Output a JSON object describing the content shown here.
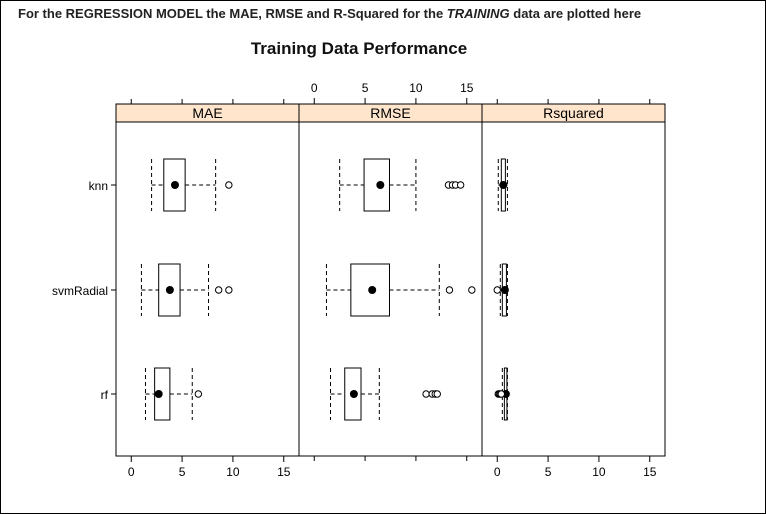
{
  "caption": {
    "part1": "For the REGRESSION MODEL the MAE, RMSE and R-Squared for the ",
    "emphasis": "TRAINING",
    "part2": " data are plotted here"
  },
  "colors": {
    "strip_background": "#ffe5cc",
    "axis": "#000000",
    "box_fill": "#ffffff"
  },
  "chart_data": {
    "type": "box",
    "title": "Training Data Performance",
    "xlim": [
      -1.5,
      16.5
    ],
    "x_ticks": [
      0,
      5,
      10,
      15
    ],
    "grid": false,
    "legend": "none",
    "categories": [
      "knn",
      "svmRadial",
      "rf"
    ],
    "panels": [
      {
        "name": "MAE",
        "boxes": [
          {
            "model": "knn",
            "whisker_low": 2.0,
            "q1": 3.2,
            "median": 4.3,
            "q3": 5.3,
            "whisker_high": 8.3,
            "outliers": [
              9.6
            ]
          },
          {
            "model": "svmRadial",
            "whisker_low": 1.0,
            "q1": 2.7,
            "median": 3.8,
            "q3": 4.8,
            "whisker_high": 7.6,
            "outliers": [
              8.6,
              9.6
            ]
          },
          {
            "model": "rf",
            "whisker_low": 1.4,
            "q1": 2.3,
            "median": 2.7,
            "q3": 3.8,
            "whisker_high": 6.0,
            "outliers": [
              6.6
            ]
          }
        ]
      },
      {
        "name": "RMSE",
        "boxes": [
          {
            "model": "knn",
            "whisker_low": 2.5,
            "q1": 4.9,
            "median": 6.5,
            "q3": 7.4,
            "whisker_high": 10.0,
            "outliers": [
              13.2,
              13.6,
              13.9,
              14.4
            ]
          },
          {
            "model": "svmRadial",
            "whisker_low": 1.2,
            "q1": 3.6,
            "median": 5.7,
            "q3": 7.4,
            "whisker_high": 12.3,
            "outliers": [
              13.3,
              15.5
            ]
          },
          {
            "model": "rf",
            "whisker_low": 1.6,
            "q1": 3.0,
            "median": 3.9,
            "q3": 4.6,
            "whisker_high": 6.4,
            "outliers": [
              11.0,
              11.6,
              11.9,
              12.1
            ]
          }
        ]
      },
      {
        "name": "Rsquared",
        "boxes": [
          {
            "model": "knn",
            "whisker_low": 0.1,
            "q1": 0.4,
            "median": 0.6,
            "q3": 0.8,
            "whisker_high": 1.0,
            "outliers": []
          },
          {
            "model": "svmRadial",
            "whisker_low": 0.3,
            "q1": 0.5,
            "median": 0.75,
            "q3": 0.9,
            "whisker_high": 1.0,
            "outliers": [
              0.0
            ]
          },
          {
            "model": "rf",
            "whisker_low": 0.5,
            "q1": 0.7,
            "median": 0.85,
            "q3": 0.95,
            "whisker_high": 1.0,
            "outliers": [
              0.1,
              0.2,
              0.3,
              0.4
            ]
          }
        ]
      }
    ]
  }
}
